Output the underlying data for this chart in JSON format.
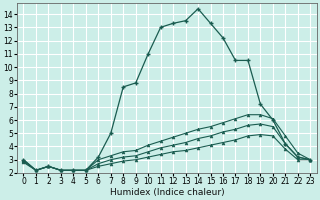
{
  "title": "",
  "xlabel": "Humidex (Indice chaleur)",
  "bg_color": "#cceee8",
  "grid_color": "#ffffff",
  "line_color": "#1a5c50",
  "xlim": [
    -0.5,
    23.5
  ],
  "ylim": [
    2.0,
    14.8
  ],
  "xticks": [
    0,
    1,
    2,
    3,
    4,
    5,
    6,
    7,
    8,
    9,
    10,
    11,
    12,
    13,
    14,
    15,
    16,
    17,
    18,
    19,
    20,
    21,
    22,
    23
  ],
  "yticks": [
    2,
    3,
    4,
    5,
    6,
    7,
    8,
    9,
    10,
    11,
    12,
    13,
    14
  ],
  "main_x": [
    0,
    1,
    2,
    3,
    4,
    5,
    6,
    7,
    8,
    9,
    10,
    11,
    12,
    13,
    14,
    15,
    16,
    17,
    18,
    19,
    20,
    21,
    22,
    23
  ],
  "main_y": [
    3.0,
    2.2,
    2.5,
    2.2,
    2.2,
    2.2,
    3.2,
    5.0,
    8.5,
    8.8,
    11.0,
    13.0,
    13.3,
    13.5,
    14.4,
    13.3,
    12.2,
    10.5,
    10.5,
    7.2,
    6.0,
    4.2,
    3.2,
    3.0
  ],
  "line1_x": [
    0,
    1,
    2,
    3,
    4,
    5,
    6,
    7,
    8,
    9,
    10,
    11,
    12,
    13,
    14,
    15,
    16,
    17,
    18,
    19,
    20,
    21,
    22,
    23
  ],
  "line1_y": [
    2.8,
    2.2,
    2.5,
    2.2,
    2.2,
    2.2,
    2.5,
    2.7,
    2.9,
    3.0,
    3.2,
    3.4,
    3.6,
    3.7,
    3.9,
    4.1,
    4.3,
    4.5,
    4.8,
    4.9,
    4.8,
    3.8,
    3.0,
    3.0
  ],
  "line2_x": [
    0,
    1,
    2,
    3,
    4,
    5,
    6,
    7,
    8,
    9,
    10,
    11,
    12,
    13,
    14,
    15,
    16,
    17,
    18,
    19,
    20,
    21,
    22,
    23
  ],
  "line2_y": [
    2.9,
    2.2,
    2.5,
    2.2,
    2.2,
    2.2,
    2.7,
    3.0,
    3.2,
    3.3,
    3.6,
    3.9,
    4.1,
    4.3,
    4.6,
    4.8,
    5.1,
    5.3,
    5.6,
    5.7,
    5.5,
    4.2,
    3.2,
    3.0
  ],
  "line3_x": [
    0,
    1,
    2,
    3,
    4,
    5,
    6,
    7,
    8,
    9,
    10,
    11,
    12,
    13,
    14,
    15,
    16,
    17,
    18,
    19,
    20,
    21,
    22,
    23
  ],
  "line3_y": [
    3.0,
    2.2,
    2.5,
    2.2,
    2.2,
    2.2,
    3.0,
    3.3,
    3.6,
    3.7,
    4.1,
    4.4,
    4.7,
    5.0,
    5.3,
    5.5,
    5.8,
    6.1,
    6.4,
    6.4,
    6.1,
    4.8,
    3.5,
    3.0
  ]
}
